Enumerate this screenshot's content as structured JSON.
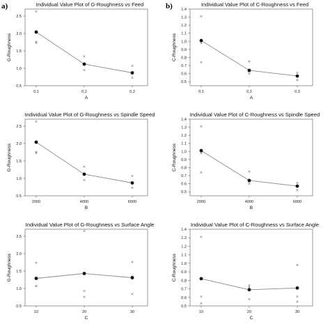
{
  "panel_labels": [
    "a)",
    "b)"
  ],
  "chart_data": [
    {
      "type": "scatter",
      "title": "Individual Value Plot of G-Roughness vs Feed",
      "xlabel": "A",
      "ylabel": "G-Roughness",
      "categories": [
        "0,1",
        "0,2",
        "0,3"
      ],
      "ylim": [
        0.5,
        2.7
      ],
      "yticks": [
        0.5,
        1.0,
        1.5,
        2.0,
        2.5
      ],
      "individual_values": [
        [
          2.63,
          1.76,
          1.73
        ],
        [
          1.34,
          1.12,
          0.95
        ],
        [
          1.07,
          0.87,
          0.73
        ]
      ],
      "means": [
        2.04,
        1.12,
        0.87
      ],
      "grid": false,
      "legend": "none"
    },
    {
      "type": "scatter",
      "title": "Individual Value Plot of C-Roughness vs Feed",
      "xlabel": "A",
      "ylabel": "C-Roughness",
      "categories": [
        "0,1",
        "0,2",
        "0,3"
      ],
      "ylim": [
        0.45,
        1.4
      ],
      "yticks": [
        0.5,
        0.6,
        0.7,
        0.8,
        0.9,
        1.0,
        1.1,
        1.2,
        1.3,
        1.4
      ],
      "individual_values": [
        [
          1.31,
          0.98,
          0.74
        ],
        [
          0.75,
          0.63,
          0.6
        ],
        [
          0.61,
          0.57,
          0.52
        ]
      ],
      "means": [
        1.01,
        0.64,
        0.57
      ],
      "grid": false,
      "legend": "none"
    },
    {
      "type": "scatter",
      "title": "Individual Value Plot of G-Roughness vs Spindle Speed",
      "xlabel": "B",
      "ylabel": "G-Roughness",
      "categories": [
        "2000",
        "4000",
        "6000"
      ],
      "ylim": [
        0.5,
        2.7
      ],
      "yticks": [
        0.5,
        1.0,
        1.5,
        2.0,
        2.5
      ],
      "individual_values": [
        [
          2.63,
          1.76,
          1.73
        ],
        [
          1.34,
          1.12,
          0.95
        ],
        [
          1.07,
          0.87,
          0.73
        ]
      ],
      "means": [
        2.04,
        1.12,
        0.87
      ],
      "grid": false,
      "legend": "none"
    },
    {
      "type": "scatter",
      "title": "Individual Value Plot of C-Roughness vs Spindle Speed",
      "xlabel": "B",
      "ylabel": "C-Roughness",
      "categories": [
        "2000",
        "4000",
        "6000"
      ],
      "ylim": [
        0.45,
        1.4
      ],
      "yticks": [
        0.5,
        0.6,
        0.7,
        0.8,
        0.9,
        1.0,
        1.1,
        1.2,
        1.3,
        1.4
      ],
      "individual_values": [
        [
          1.31,
          0.98,
          0.74
        ],
        [
          0.75,
          0.63,
          0.6
        ],
        [
          0.61,
          0.57,
          0.52
        ]
      ],
      "means": [
        1.01,
        0.64,
        0.57
      ],
      "grid": false,
      "legend": "none"
    },
    {
      "type": "scatter",
      "title": "Individual Value Plot of G-Roughness vs Surface Angle",
      "xlabel": "C",
      "ylabel": "G-Roughness",
      "categories": [
        "10",
        "20",
        "30"
      ],
      "ylim": [
        0.5,
        2.7
      ],
      "yticks": [
        0.5,
        1.0,
        1.5,
        2.0,
        2.5
      ],
      "individual_values": [
        [
          1.74,
          1.07,
          1.07
        ],
        [
          2.65,
          0.93,
          0.76
        ],
        [
          1.76,
          1.34,
          0.84
        ]
      ],
      "means": [
        1.29,
        1.43,
        1.31
      ],
      "grid": false,
      "legend": "none"
    },
    {
      "type": "scatter",
      "title": "Individual Value Plot of C-Roughness vs Surface Angle",
      "xlabel": "C",
      "ylabel": "C-Roughness",
      "categories": [
        "10",
        "20",
        "30"
      ],
      "ylim": [
        0.5,
        1.4
      ],
      "yticks": [
        0.5,
        0.6,
        0.7,
        0.8,
        0.9,
        1.0,
        1.1,
        1.2,
        1.3,
        1.4
      ],
      "individual_values": [
        [
          1.31,
          0.61,
          0.53
        ],
        [
          0.74,
          0.72,
          0.58
        ],
        [
          0.98,
          0.61,
          0.55
        ]
      ],
      "means": [
        0.82,
        0.69,
        0.71
      ],
      "grid": false,
      "legend": "none"
    }
  ]
}
